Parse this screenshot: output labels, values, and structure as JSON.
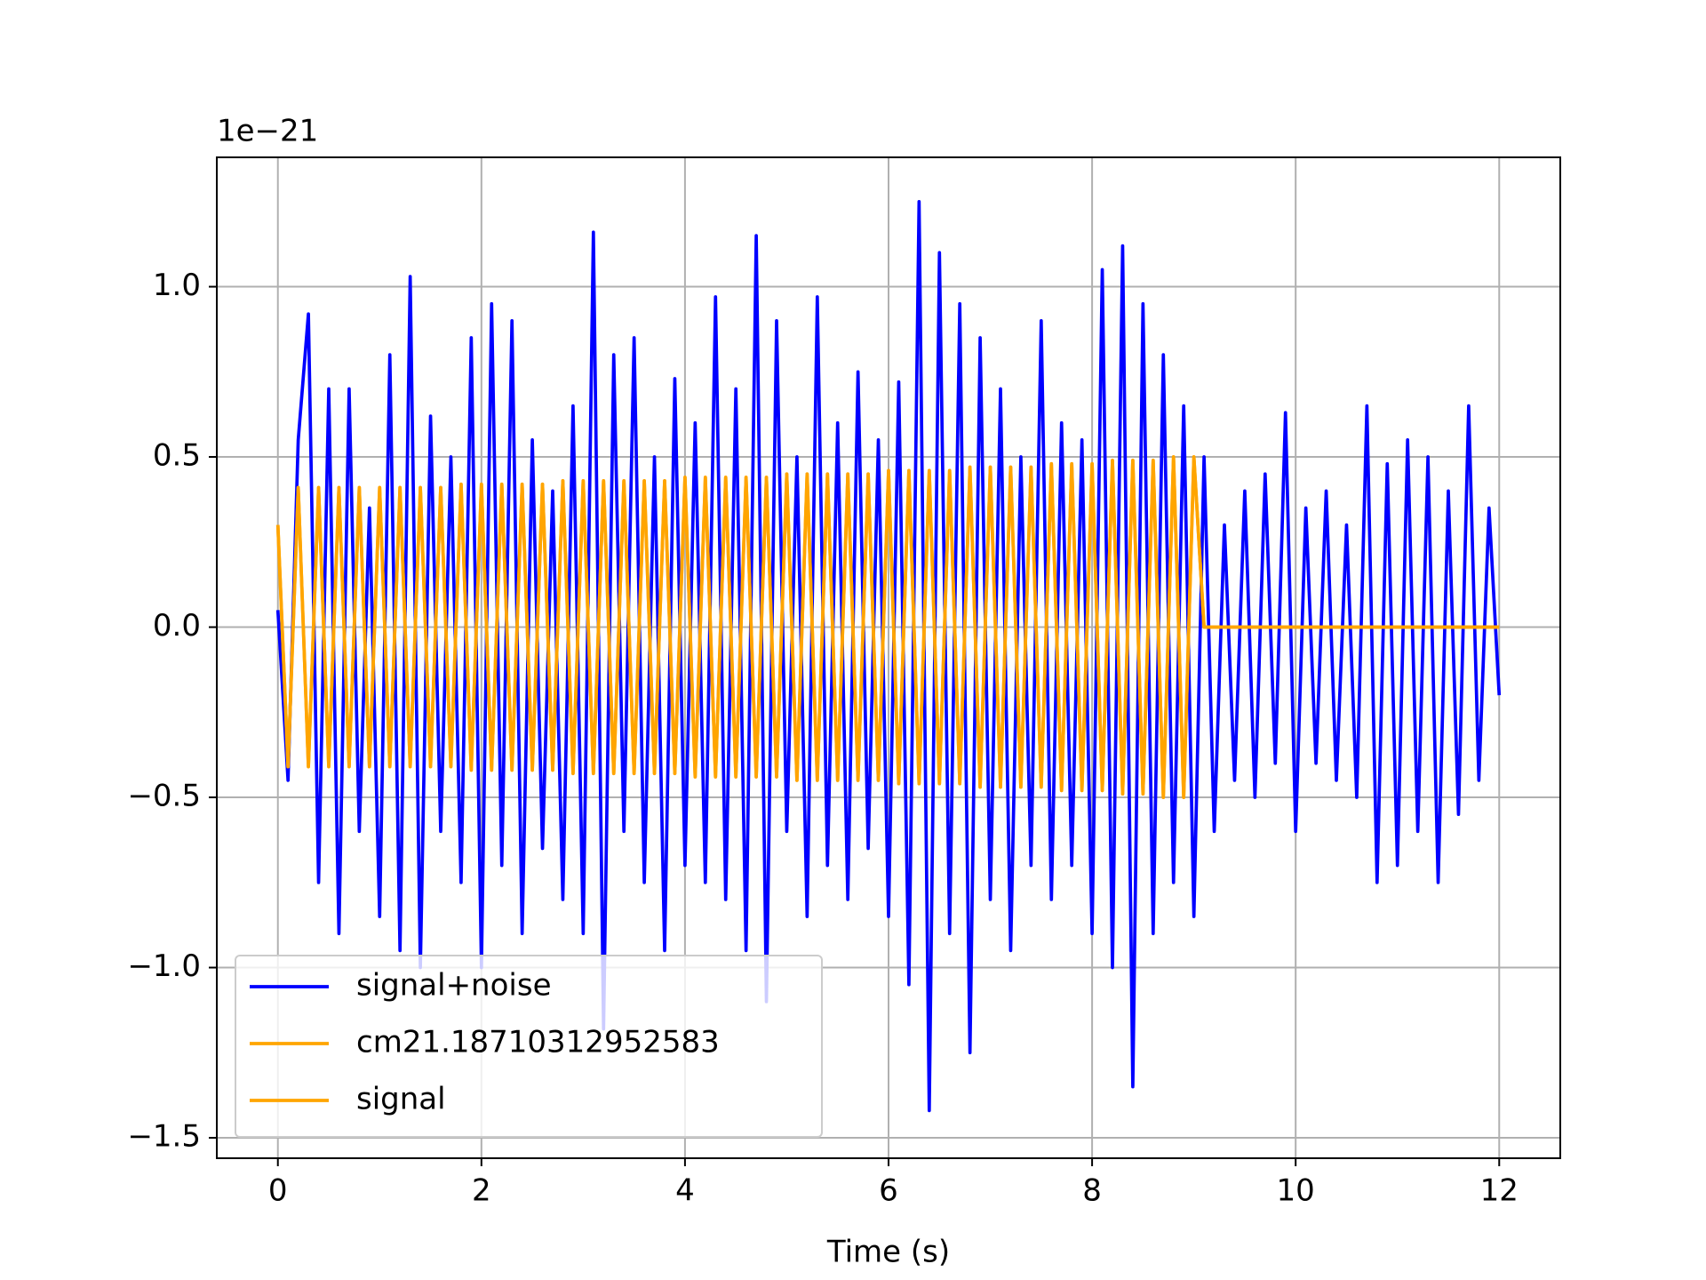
{
  "chart_data": {
    "type": "line",
    "y_offset_label": "1e−21",
    "xlabel": "Time (s)",
    "xlim": [
      -0.6,
      12.6
    ],
    "ylim": [
      -1.56,
      1.38
    ],
    "xticks": [
      0,
      2,
      4,
      6,
      8,
      10,
      12
    ],
    "yticks": [
      {
        "value": -1.5,
        "label": "−1.5"
      },
      {
        "value": -1,
        "label": "−1.0"
      },
      {
        "value": -0.5,
        "label": "−0.5"
      },
      {
        "value": 0,
        "label": "0.0"
      },
      {
        "value": 0.5,
        "label": "0.5"
      },
      {
        "value": 1,
        "label": "1.0"
      }
    ],
    "grid": true,
    "legend": "lower left",
    "x": [
      0,
      0.1,
      0.2,
      0.3,
      0.4,
      0.5,
      0.6,
      0.7,
      0.8,
      0.9,
      1,
      1.1,
      1.2,
      1.3,
      1.4,
      1.5,
      1.6,
      1.7,
      1.8,
      1.9,
      2,
      2.1,
      2.2,
      2.3,
      2.4,
      2.5,
      2.6,
      2.7,
      2.8,
      2.9,
      3,
      3.1,
      3.2,
      3.3,
      3.4,
      3.5,
      3.6,
      3.7,
      3.8,
      3.9,
      4,
      4.1,
      4.2,
      4.3,
      4.4,
      4.5,
      4.6,
      4.7,
      4.8,
      4.9,
      5,
      5.1,
      5.2,
      5.3,
      5.4,
      5.5,
      5.6,
      5.7,
      5.8,
      5.9,
      6,
      6.1,
      6.2,
      6.3,
      6.4,
      6.5,
      6.6,
      6.7,
      6.8,
      6.9,
      7,
      7.1,
      7.2,
      7.3,
      7.4,
      7.5,
      7.6,
      7.7,
      7.8,
      7.9,
      8,
      8.1,
      8.2,
      8.3,
      8.4,
      8.5,
      8.6,
      8.7,
      8.8,
      8.9,
      9,
      9.1,
      9.2,
      9.3,
      9.4,
      9.5,
      9.6,
      9.7,
      9.8,
      9.9,
      10,
      10.1,
      10.2,
      10.3,
      10.4,
      10.5,
      10.6,
      10.7,
      10.8,
      10.9,
      11,
      11.1,
      11.2,
      11.3,
      11.4,
      11.5,
      11.6,
      11.7,
      11.8,
      11.9,
      12
    ],
    "series": [
      {
        "name": "signal+noise",
        "color": "#0000ff",
        "values": [
          0.05,
          -0.45,
          0.55,
          0.92,
          -0.75,
          0.7,
          -0.9,
          0.7,
          -0.6,
          0.35,
          -0.85,
          0.8,
          -0.95,
          1.03,
          -1.0,
          0.62,
          -0.6,
          0.5,
          -0.75,
          0.85,
          -1.0,
          0.95,
          -0.7,
          0.9,
          -0.9,
          0.55,
          -0.65,
          0.4,
          -0.8,
          0.65,
          -0.9,
          1.16,
          -1.18,
          0.8,
          -0.6,
          0.85,
          -0.75,
          0.5,
          -0.95,
          0.73,
          -0.7,
          0.6,
          -0.75,
          0.97,
          -0.8,
          0.7,
          -0.95,
          1.15,
          -1.1,
          0.9,
          -0.6,
          0.5,
          -0.85,
          0.97,
          -0.7,
          0.6,
          -0.8,
          0.75,
          -0.65,
          0.55,
          -0.85,
          0.72,
          -1.05,
          1.25,
          -1.42,
          1.1,
          -0.9,
          0.95,
          -1.25,
          0.85,
          -0.8,
          0.7,
          -0.95,
          0.5,
          -0.7,
          0.9,
          -0.8,
          0.6,
          -0.7,
          0.55,
          -0.9,
          1.05,
          -1.0,
          1.12,
          -1.35,
          0.95,
          -0.9,
          0.8,
          -0.75,
          0.65,
          -0.85,
          0.5,
          -0.6,
          0.3,
          -0.45,
          0.4,
          -0.5,
          0.45,
          -0.4,
          0.63,
          -0.6,
          0.35,
          -0.4,
          0.4,
          -0.45,
          0.3,
          -0.5,
          0.65,
          -0.75,
          0.48,
          -0.7,
          0.55,
          -0.6,
          0.5,
          -0.75,
          0.4,
          -0.55,
          0.65,
          -0.45,
          0.35,
          -0.2
        ]
      },
      {
        "name": "cm21.18710312952583",
        "color": "#ffa500",
        "values": [
          0.3,
          -0.41,
          0.41,
          -0.41,
          0.41,
          -0.41,
          0.41,
          -0.41,
          0.41,
          -0.41,
          0.41,
          -0.41,
          0.41,
          -0.41,
          0.41,
          -0.41,
          0.41,
          -0.41,
          0.42,
          -0.42,
          0.42,
          -0.42,
          0.42,
          -0.42,
          0.42,
          -0.42,
          0.42,
          -0.42,
          0.43,
          -0.43,
          0.43,
          -0.43,
          0.43,
          -0.43,
          0.43,
          -0.43,
          0.43,
          -0.43,
          0.43,
          -0.43,
          0.44,
          -0.44,
          0.44,
          -0.44,
          0.44,
          -0.44,
          0.44,
          -0.44,
          0.44,
          -0.44,
          0.45,
          -0.45,
          0.45,
          -0.45,
          0.45,
          -0.45,
          0.45,
          -0.45,
          0.45,
          -0.45,
          0.46,
          -0.46,
          0.46,
          -0.46,
          0.46,
          -0.46,
          0.46,
          -0.46,
          0.47,
          -0.47,
          0.47,
          -0.47,
          0.47,
          -0.47,
          0.47,
          -0.47,
          0.48,
          -0.48,
          0.48,
          -0.48,
          0.48,
          -0.48,
          0.49,
          -0.49,
          0.49,
          -0.49,
          0.49,
          -0.5,
          0.5,
          -0.5,
          0.5,
          0,
          0,
          0,
          0,
          0,
          0,
          0,
          0,
          0,
          0,
          0,
          0,
          0,
          0,
          0,
          0,
          0,
          0,
          0,
          0,
          0,
          0,
          0,
          0,
          0,
          0,
          0,
          0,
          0,
          0
        ]
      },
      {
        "name": "signal",
        "color": "#ffa500",
        "values": [
          0.3,
          -0.41,
          0.41,
          -0.41,
          0.41,
          -0.41,
          0.41,
          -0.41,
          0.41,
          -0.41,
          0.41,
          -0.41,
          0.41,
          -0.41,
          0.41,
          -0.41,
          0.41,
          -0.41,
          0.42,
          -0.42,
          0.42,
          -0.42,
          0.42,
          -0.42,
          0.42,
          -0.42,
          0.42,
          -0.42,
          0.43,
          -0.43,
          0.43,
          -0.43,
          0.43,
          -0.43,
          0.43,
          -0.43,
          0.43,
          -0.43,
          0.43,
          -0.43,
          0.44,
          -0.44,
          0.44,
          -0.44,
          0.44,
          -0.44,
          0.44,
          -0.44,
          0.44,
          -0.44,
          0.45,
          -0.45,
          0.45,
          -0.45,
          0.45,
          -0.45,
          0.45,
          -0.45,
          0.45,
          -0.45,
          0.46,
          -0.46,
          0.46,
          -0.46,
          0.46,
          -0.46,
          0.46,
          -0.46,
          0.47,
          -0.47,
          0.47,
          -0.47,
          0.47,
          -0.47,
          0.47,
          -0.47,
          0.48,
          -0.48,
          0.48,
          -0.48,
          0.48,
          -0.48,
          0.49,
          -0.49,
          0.49,
          -0.49,
          0.49,
          -0.5,
          0.5,
          -0.5,
          0.5,
          0,
          0,
          0,
          0,
          0,
          0,
          0,
          0,
          0,
          0,
          0,
          0,
          0,
          0,
          0,
          0,
          0,
          0,
          0,
          0,
          0,
          0,
          0,
          0,
          0,
          0,
          0,
          0,
          0,
          0
        ]
      }
    ]
  }
}
